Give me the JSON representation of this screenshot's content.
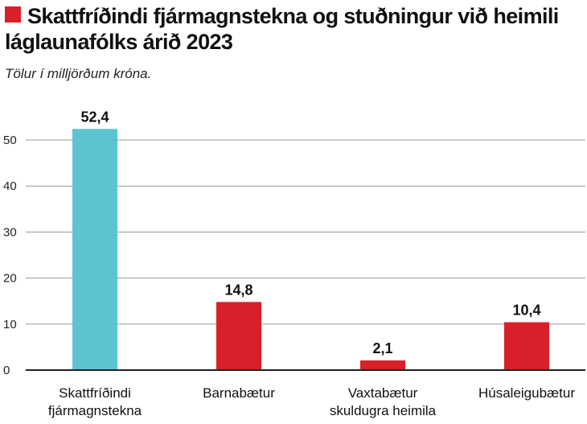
{
  "colors": {
    "accent": "#d9202a",
    "highlight": "#5bc4d0",
    "grid": "#9a9a9a",
    "axis": "#222222"
  },
  "header": {
    "title": "Skattfríðindi fjármagnstekna og stuðningur við heimili láglaunafólks árið 2023",
    "subtitle": "Tölur í milljörðum króna."
  },
  "chart_data": {
    "type": "bar",
    "title": "Skattfríðindi fjármagnstekna og stuðningur við heimili láglaunafólks árið 2023",
    "subtitle": "Tölur í milljörðum króna.",
    "categories": [
      [
        "Skattfríðindi",
        "fjármagnstekna"
      ],
      [
        "Barnabætur"
      ],
      [
        "Vaxtabætur",
        "skuldugra heimila"
      ],
      [
        "Húsaleigubætur"
      ]
    ],
    "values": [
      52.4,
      14.8,
      2.1,
      10.4
    ],
    "value_labels": [
      "52,4",
      "14,8",
      "2,1",
      "10,4"
    ],
    "bar_colors": [
      "#5bc4d0",
      "#d9202a",
      "#d9202a",
      "#d9202a"
    ],
    "ylim": [
      0,
      55
    ],
    "yticks": [
      0,
      10,
      20,
      30,
      40,
      50
    ],
    "grid": true,
    "legend": "none"
  }
}
